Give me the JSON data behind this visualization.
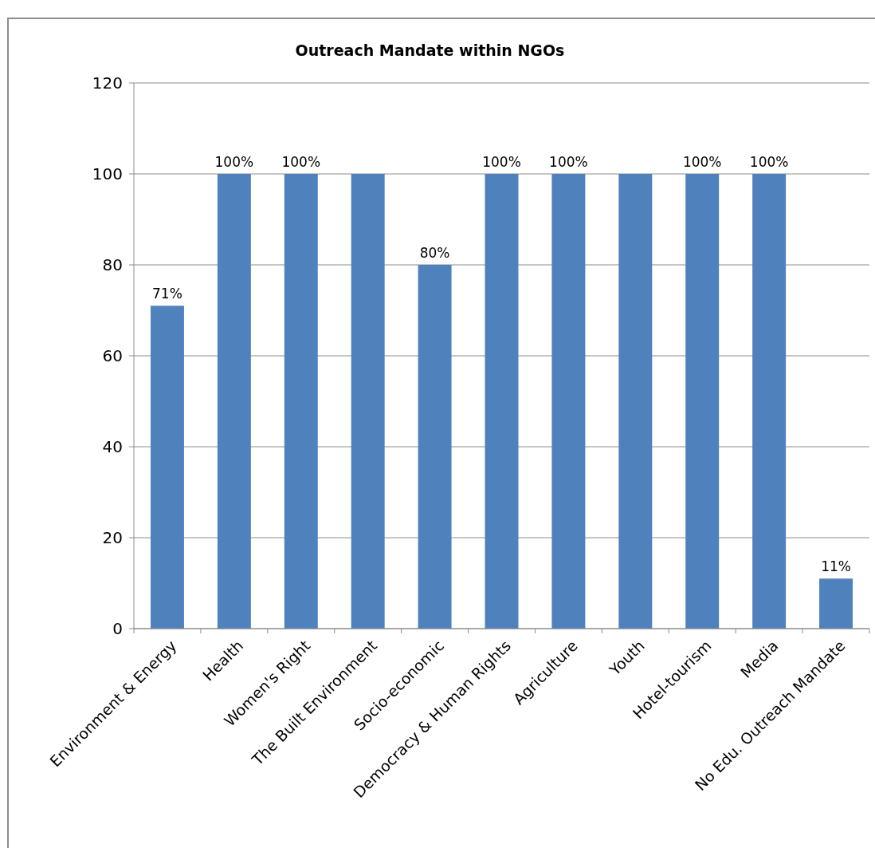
{
  "chart_data": {
    "type": "bar",
    "title": "Outreach Mandate within NGOs",
    "categories": [
      "Environment & Energy",
      "Health",
      "Women's Right",
      "The Built Environment",
      "Socio-economic",
      "Democracy & Human Rights",
      "Agriculture",
      "Youth",
      "Hotel-tourism",
      "Media",
      "No Edu. Outreach Mandate"
    ],
    "values": [
      71,
      100,
      100,
      100,
      80,
      100,
      100,
      100,
      100,
      100,
      11
    ],
    "value_labels": [
      "71%",
      "100%",
      "100%",
      null,
      "80%",
      "100%",
      "100%",
      null,
      "100%",
      "100%",
      "11%"
    ],
    "color": "#4f81bd",
    "ylim": [
      0,
      120
    ],
    "yticks": [
      0,
      20,
      40,
      60,
      80,
      100,
      120
    ],
    "grid": "y"
  }
}
